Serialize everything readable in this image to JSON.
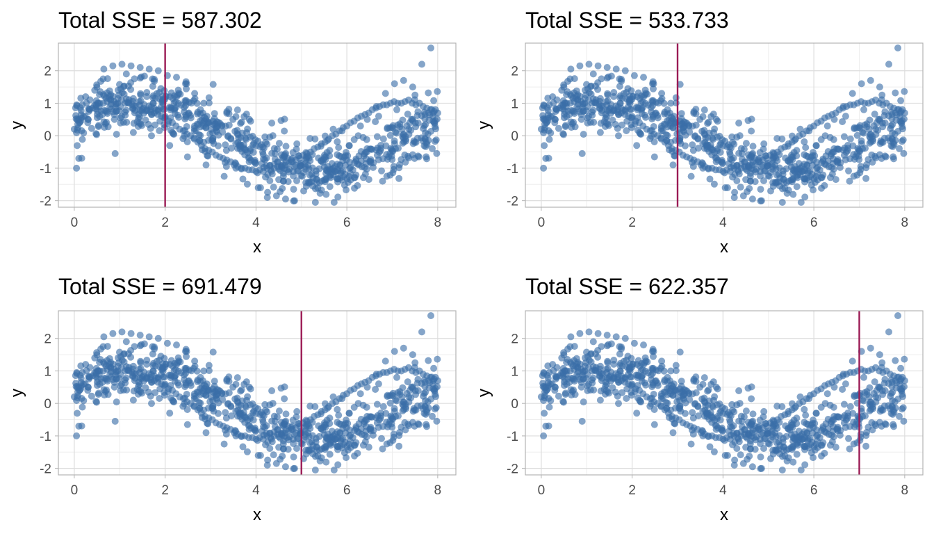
{
  "colors": {
    "points": "#3A6EA8",
    "split_line": "#9B1B55",
    "grid_major": "#dddddd",
    "grid_minor": "#eeeeee",
    "panel_border": "#b3b3b3",
    "tick_text": "#4d4d4d"
  },
  "chart_data": [
    {
      "type": "scatter",
      "title": "Total SSE =  587.302",
      "xlabel": "x",
      "ylabel": "y",
      "xlim": [
        -0.35,
        8.4
      ],
      "ylim": [
        -2.2,
        2.85
      ],
      "x_ticks": [
        0,
        2,
        4,
        6,
        8
      ],
      "y_ticks": [
        -2,
        -1,
        0,
        1,
        2
      ],
      "grid": true,
      "split_x": 2,
      "total_sse": 587.302
    },
    {
      "type": "scatter",
      "title": "Total SSE =  533.733",
      "xlabel": "x",
      "ylabel": "y",
      "xlim": [
        -0.35,
        8.4
      ],
      "ylim": [
        -2.2,
        2.85
      ],
      "x_ticks": [
        0,
        2,
        4,
        6,
        8
      ],
      "y_ticks": [
        -2,
        -1,
        0,
        1,
        2
      ],
      "grid": true,
      "split_x": 3,
      "total_sse": 533.733
    },
    {
      "type": "scatter",
      "title": "Total SSE =  691.479",
      "xlabel": "x",
      "ylabel": "y",
      "xlim": [
        -0.35,
        8.4
      ],
      "ylim": [
        -2.2,
        2.85
      ],
      "x_ticks": [
        0,
        2,
        4,
        6,
        8
      ],
      "y_ticks": [
        -2,
        -1,
        0,
        1,
        2
      ],
      "grid": true,
      "split_x": 5,
      "total_sse": 691.479
    },
    {
      "type": "scatter",
      "title": "Total SSE =  622.357",
      "xlabel": "x",
      "ylabel": "y",
      "xlim": [
        -0.35,
        8.4
      ],
      "ylim": [
        -2.2,
        2.85
      ],
      "x_ticks": [
        0,
        2,
        4,
        6,
        8
      ],
      "y_ticks": [
        -2,
        -1,
        0,
        1,
        2
      ],
      "grid": true,
      "split_x": 7,
      "total_sse": 622.357
    }
  ],
  "shared_points": {
    "description": "Same noisy sine-like scatter in every panel, y approx sin(x*0.79+0.4) plus noise, x from 0 to 8",
    "x": [
      0.0,
      0.08,
      0.16,
      0.24,
      0.32,
      0.4,
      0.48,
      0.56,
      0.64,
      0.72,
      0.8,
      0.88,
      0.96,
      1.04,
      1.12,
      1.2,
      1.28,
      1.36,
      1.44,
      1.52,
      1.6,
      1.68,
      1.76,
      1.84,
      1.92,
      2.0,
      2.08,
      2.16,
      2.24,
      2.32,
      2.4,
      2.48,
      2.56,
      2.64,
      2.72,
      2.8,
      2.88,
      2.96,
      3.04,
      3.12,
      3.2,
      3.28,
      3.36,
      3.44,
      3.52,
      3.6,
      3.68,
      3.76,
      3.84,
      3.92,
      4.0,
      4.08,
      4.16,
      4.24,
      4.32,
      4.4,
      4.48,
      4.56,
      4.64,
      4.72,
      4.8,
      4.88,
      4.96,
      5.04,
      5.12,
      5.2,
      5.28,
      5.36,
      5.44,
      5.52,
      5.6,
      5.68,
      5.76,
      5.84,
      5.92,
      6.0,
      6.08,
      6.16,
      6.24,
      6.32,
      6.4,
      6.48,
      6.56,
      6.64,
      6.72,
      6.8,
      6.88,
      6.96,
      7.04,
      7.12,
      7.2,
      7.28,
      7.36,
      7.44,
      7.52,
      7.6,
      7.68,
      7.76,
      7.84,
      7.92,
      8.0,
      0.05,
      0.25,
      0.45,
      0.65,
      0.85,
      1.05,
      1.25,
      1.45,
      1.65,
      1.85,
      2.05,
      2.25,
      2.45,
      2.65,
      2.85,
      3.05,
      3.25,
      3.45,
      3.65,
      3.85,
      4.05,
      4.25,
      4.45,
      4.65,
      4.85,
      5.05,
      5.25,
      5.45,
      5.65,
      5.85,
      6.05,
      6.25,
      6.45,
      6.65,
      6.85,
      7.05,
      7.25,
      7.45,
      7.65,
      7.85,
      0.1,
      0.9,
      1.3,
      1.7,
      2.1,
      2.9,
      3.3,
      4.1,
      4.5,
      4.9,
      5.3,
      5.7,
      6.3,
      6.7,
      7.1,
      7.5,
      7.9,
      7.95
    ],
    "y": [
      0.2,
      0.35,
      0.55,
      0.6,
      0.75,
      0.85,
      0.95,
      1.0,
      1.0,
      1.05,
      1.1,
      1.05,
      1.0,
      1.1,
      1.0,
      1.0,
      0.95,
      0.9,
      0.95,
      0.85,
      0.8,
      0.8,
      0.7,
      0.65,
      0.6,
      0.55,
      0.45,
      0.4,
      0.3,
      0.2,
      0.15,
      0.05,
      0.0,
      -0.1,
      -0.2,
      -0.3,
      -0.4,
      -0.45,
      -0.5,
      -0.6,
      -0.65,
      -0.7,
      -0.75,
      -0.8,
      -0.9,
      -0.95,
      -1.0,
      -1.0,
      -1.05,
      -1.05,
      -1.1,
      -1.05,
      -1.1,
      -1.0,
      -1.05,
      -1.0,
      -0.95,
      -0.95,
      -0.9,
      -0.85,
      -0.8,
      -0.75,
      -0.7,
      -0.6,
      -0.55,
      -0.5,
      -0.4,
      -0.35,
      -0.25,
      -0.2,
      -0.1,
      0.0,
      0.05,
      0.15,
      0.25,
      0.3,
      0.4,
      0.45,
      0.55,
      0.6,
      0.65,
      0.7,
      0.8,
      0.85,
      0.9,
      0.95,
      0.95,
      1.0,
      1.05,
      1.0,
      1.0,
      1.05,
      1.1,
      1.0,
      0.95,
      1.0,
      0.9,
      0.85,
      0.8,
      0.75,
      0.7,
      -1.0,
      1.2,
      1.4,
      2.05,
      2.15,
      2.2,
      2.15,
      2.1,
      2.05,
      2.0,
      1.85,
      1.8,
      1.6,
      1.3,
      1.0,
      0.45,
      0.3,
      -0.1,
      -0.4,
      -0.8,
      -1.6,
      -1.9,
      -1.85,
      -1.95,
      -2.0,
      -1.7,
      -1.55,
      -1.4,
      -1.2,
      -0.9,
      -0.3,
      0.0,
      0.5,
      0.9,
      1.3,
      1.6,
      1.7,
      1.5,
      2.2,
      2.7,
      -0.7,
      -0.55,
      0.1,
      0.0,
      -0.3,
      -0.9,
      -1.25,
      -1.6,
      -1.35,
      -0.25,
      -0.1,
      0.2,
      0.3,
      0.6,
      0.8,
      1.25,
      0.45,
      0.8
    ]
  }
}
